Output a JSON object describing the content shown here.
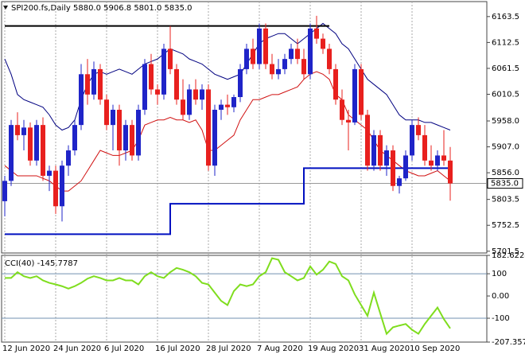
{
  "chart_data": [
    {
      "type": "candlestick",
      "title": "SPI200.fs,Daily  5880.0 5906.8 5801.0 5835.0",
      "categories": [
        "12 Jun 2020",
        null,
        null,
        null,
        null,
        null,
        null,
        null,
        "24 Jun 2020",
        null,
        null,
        null,
        null,
        null,
        null,
        null,
        "6 Jul 2020",
        null,
        null,
        null,
        null,
        null,
        null,
        null,
        "16 Jul 2020",
        null,
        null,
        null,
        null,
        null,
        null,
        null,
        "28 Jul 2020",
        null,
        null,
        null,
        null,
        null,
        null,
        null,
        "7 Aug 2020",
        null,
        null,
        null,
        null,
        null,
        null,
        null,
        "19 Aug 2020",
        null,
        null,
        null,
        null,
        null,
        null,
        null,
        "31 Aug 2020",
        null,
        null,
        null,
        null,
        null,
        null,
        null,
        "10 Sep 2020",
        null,
        null,
        null,
        null,
        null,
        null
      ],
      "open": [
        5800,
        5840,
        5950,
        5930,
        5945,
        5880,
        5950,
        5850,
        5860,
        5790,
        5870,
        5900,
        5950,
        6050,
        6010,
        6060,
        6000,
        5950,
        5980,
        5900,
        5950,
        5890,
        5980,
        6070,
        6020,
        6010,
        6100,
        6060,
        6000,
        5970,
        6020,
        6000,
        6020,
        5870,
        5980,
        5990,
        5985,
        6005,
        6060,
        6100,
        6070,
        6140,
        6070,
        6050,
        6060,
        6080,
        6100,
        6080,
        6050,
        6140,
        6120,
        6100,
        6060,
        6000,
        5960,
        5955,
        6060,
        5970,
        5870,
        5930,
        5870,
        5900,
        5830,
        5845,
        5890,
        5950,
        5930,
        5880,
        5870,
        5890,
        5880
      ],
      "high": [
        5850,
        5960,
        5975,
        5960,
        5955,
        5960,
        5965,
        5870,
        5870,
        5880,
        5910,
        5960,
        6070,
        6080,
        6075,
        6070,
        6010,
        5990,
        5990,
        5960,
        5960,
        5990,
        6080,
        6090,
        6030,
        6110,
        6145,
        6070,
        6040,
        6030,
        6040,
        6030,
        6030,
        5990,
        6000,
        6010,
        6010,
        6070,
        6110,
        6120,
        6150,
        6150,
        6090,
        6080,
        6090,
        6110,
        6120,
        6100,
        6150,
        6165,
        6130,
        6110,
        6070,
        6020,
        5980,
        6070,
        6070,
        5980,
        5940,
        5940,
        5910,
        5910,
        5850,
        5900,
        5960,
        5965,
        5950,
        5910,
        5900,
        5940,
        5906.8
      ],
      "low": [
        5770,
        5830,
        5920,
        5900,
        5870,
        5870,
        5840,
        5820,
        5775,
        5760,
        5850,
        5890,
        5940,
        5990,
        6000,
        5990,
        5940,
        5900,
        5870,
        5880,
        5880,
        5880,
        5970,
        6010,
        5990,
        6000,
        6050,
        5990,
        5960,
        5960,
        5990,
        5980,
        5860,
        5850,
        5960,
        5970,
        5975,
        5995,
        6050,
        6060,
        6060,
        6060,
        6040,
        6040,
        6050,
        6070,
        6070,
        6040,
        6040,
        6110,
        6090,
        6050,
        5990,
        5950,
        5900,
        5950,
        5960,
        5860,
        5860,
        5860,
        5850,
        5820,
        5815,
        5840,
        5880,
        5920,
        5870,
        5860,
        5860,
        5870,
        5801
      ],
      "close": [
        5840,
        5950,
        5930,
        5945,
        5880,
        5950,
        5850,
        5860,
        5790,
        5870,
        5900,
        5950,
        6050,
        6010,
        6060,
        6000,
        5950,
        5980,
        5900,
        5950,
        5890,
        5980,
        6070,
        6020,
        6010,
        6100,
        6060,
        6000,
        5970,
        6020,
        6000,
        6020,
        5870,
        5980,
        5990,
        5985,
        6005,
        6060,
        6100,
        6070,
        6140,
        6070,
        6050,
        6060,
        6080,
        6100,
        6080,
        6050,
        6140,
        6120,
        6100,
        6060,
        6000,
        5960,
        5955,
        6060,
        5970,
        5870,
        5930,
        5870,
        5900,
        5830,
        5845,
        5890,
        5950,
        5930,
        5880,
        5870,
        5890,
        5880,
        5835
      ],
      "up_color": "#1f24c8",
      "down_color": "#e8201e",
      "lines": [
        {
          "color": "#000080",
          "width": 1,
          "step": false,
          "values": [
            6080,
            6050,
            6010,
            6000,
            5995,
            5990,
            5985,
            5970,
            5950,
            5940,
            5945,
            5960,
            6000,
            6030,
            6050,
            6055,
            6050,
            6055,
            6060,
            6055,
            6050,
            6060,
            6070,
            6075,
            6080,
            6090,
            6100,
            6095,
            6090,
            6080,
            6075,
            6070,
            6060,
            6050,
            6045,
            6040,
            6045,
            6050,
            6070,
            6090,
            6110,
            6120,
            6125,
            6130,
            6130,
            6120,
            6110,
            6120,
            6130,
            6140,
            6150,
            6140,
            6130,
            6110,
            6100,
            6080,
            6060,
            6040,
            6030,
            6020,
            6010,
            5990,
            5970,
            5960,
            5960,
            5960,
            5955,
            5955,
            5950,
            5945,
            5940
          ]
        },
        {
          "color": "#d01010",
          "width": 1,
          "step": false,
          "values": [
            5870,
            5860,
            5850,
            5850,
            5850,
            5850,
            5845,
            5840,
            5830,
            5820,
            5820,
            5830,
            5840,
            5860,
            5880,
            5900,
            5895,
            5890,
            5890,
            5895,
            5900,
            5920,
            5950,
            5955,
            5960,
            5960,
            5965,
            5960,
            5960,
            5955,
            5960,
            5940,
            5900,
            5900,
            5910,
            5920,
            5930,
            5960,
            5980,
            6000,
            6000,
            6005,
            6010,
            6010,
            6015,
            6020,
            6025,
            6040,
            6050,
            6055,
            6050,
            6040,
            6010,
            6000,
            5970,
            5960,
            5950,
            5940,
            5920,
            5900,
            5890,
            5880,
            5870,
            5860,
            5855,
            5850,
            5850,
            5855,
            5860,
            5850,
            5840
          ]
        },
        {
          "color": "#0010c0",
          "width": 2,
          "step": true,
          "values": [
            5735,
            5735,
            5735,
            5735,
            5735,
            5735,
            5735,
            5735,
            5735,
            5735,
            5735,
            5735,
            5735,
            5735,
            5735,
            5735,
            5735,
            5735,
            5735,
            5735,
            5735,
            5735,
            5735,
            5735,
            5735,
            5735,
            5795,
            5795,
            5795,
            5795,
            5795,
            5795,
            5795,
            5795,
            5795,
            5795,
            5795,
            5795,
            5795,
            5795,
            5795,
            5795,
            5795,
            5795,
            5795,
            5795,
            5795,
            5865,
            5865,
            5865,
            5865,
            5865,
            5865,
            5865,
            5865,
            5865,
            5865,
            5865,
            5865,
            5865,
            5865,
            5865,
            5865,
            5865,
            5865,
            5865,
            5865,
            5865,
            5865,
            5865,
            5865
          ]
        },
        {
          "color": "#000000",
          "width": 2,
          "step": false,
          "values": [
            6145,
            6145,
            6145,
            6145,
            6145,
            6145,
            6145,
            6145,
            6145,
            6145,
            6145,
            6145,
            6145,
            6145,
            6145,
            6145,
            6145,
            6145,
            6145,
            6145,
            6145,
            6145,
            6145,
            6145,
            6145,
            6145,
            6145,
            6145,
            6145,
            6145,
            6145,
            6145,
            6145,
            6145,
            6145,
            6145,
            6145,
            6145,
            6145,
            6145,
            6145,
            6145,
            6145,
            6145,
            6145,
            6145,
            6145,
            6145,
            6145,
            6145,
            6145,
            6145,
            null,
            null,
            null,
            null,
            null,
            null,
            null,
            null,
            null,
            null,
            null,
            null,
            null,
            null,
            null,
            null,
            null,
            null,
            null
          ]
        }
      ],
      "price_line": {
        "value": 5835,
        "label": "5835.0"
      },
      "ylim": [
        5698,
        6193
      ],
      "yticks": [
        6163.5,
        6112.5,
        6061.5,
        6010.5,
        {
          "value": 5958,
          "label": "5958.0"
        },
        {
          "value": 5907,
          "label": "5907.0"
        },
        {
          "value": 5856,
          "label": "5856.0"
        },
        5803.5,
        5752.5,
        5701.5
      ]
    },
    {
      "type": "line",
      "title": "CCI(40) -145.7787",
      "color": "#7fdd1e",
      "values": [
        81,
        81,
        107,
        89,
        81,
        89,
        70,
        59,
        52,
        44,
        33,
        44,
        59,
        78,
        89,
        81,
        70,
        70,
        81,
        70,
        70,
        52,
        89,
        107,
        89,
        81,
        107,
        126,
        118,
        107,
        89,
        59,
        52,
        15,
        -22,
        -41,
        22,
        52,
        44,
        52,
        89,
        107,
        170,
        163,
        107,
        89,
        70,
        81,
        133,
        96,
        118,
        155,
        144,
        89,
        70,
        7,
        -41,
        -89,
        15,
        -78,
        -170,
        -141,
        -133,
        -126,
        -152,
        -170,
        -126,
        -89,
        -52,
        -104,
        -145.7787
      ],
      "ylim": [
        -207.357,
        182.6224
      ],
      "yticks": [
        182.6224,
        100,
        {
          "value": 0,
          "label": "0.00"
        },
        -100,
        -207.357
      ],
      "levels": [
        100,
        -100
      ]
    }
  ]
}
